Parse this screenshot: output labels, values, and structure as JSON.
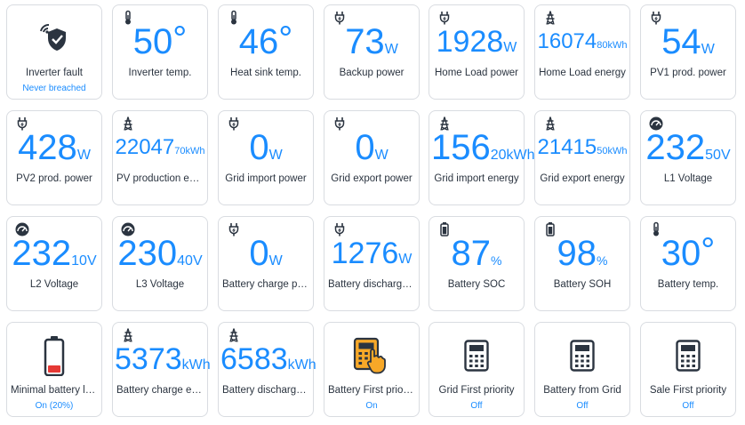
{
  "colors": {
    "accent": "#1a8cff",
    "label": "#2b3440",
    "border": "#d9dce1",
    "fault_green": "#2aa889",
    "battery_red": "#e53935",
    "calc_orange": "#f7a828"
  },
  "tiles": [
    {
      "id": "inverter-fault",
      "icon": "wifi-shield-icon",
      "label": "Inverter fault",
      "sub": "Never breached"
    },
    {
      "id": "inverter-temp",
      "icon": "thermometer-icon",
      "value": "50",
      "unit": "°",
      "label": "Inverter temp."
    },
    {
      "id": "heat-sink-temp",
      "icon": "thermometer-icon",
      "value": "46",
      "unit": "°",
      "label": "Heat sink temp."
    },
    {
      "id": "backup-power",
      "icon": "plug-icon",
      "value": "73",
      "unit": "W",
      "label": "Backup power"
    },
    {
      "id": "home-load-power",
      "icon": "plug-icon",
      "value": "1928",
      "unit": "W",
      "label": "Home Load power"
    },
    {
      "id": "home-load-energy",
      "icon": "tower-icon",
      "value": "16074",
      "unit": "80kWh",
      "label": "Home Load energy"
    },
    {
      "id": "pv1-prod-power",
      "icon": "plug-icon",
      "value": "54",
      "unit": "W",
      "label": "PV1 prod. power"
    },
    {
      "id": "pv2-prod-power",
      "icon": "plug-icon",
      "value": "428",
      "unit": "W",
      "label": "PV2 prod. power"
    },
    {
      "id": "pv-production-energy",
      "icon": "tower-icon",
      "value": "22047",
      "unit": "70kWh",
      "label": "PV production energy"
    },
    {
      "id": "grid-import-power",
      "icon": "plug-icon",
      "value": "0",
      "unit": "W",
      "label": "Grid import power"
    },
    {
      "id": "grid-export-power",
      "icon": "plug-icon",
      "value": "0",
      "unit": "W",
      "label": "Grid export power"
    },
    {
      "id": "grid-import-energy",
      "icon": "tower-icon",
      "value": "156",
      "unit": "20kWh",
      "label": "Grid import energy"
    },
    {
      "id": "grid-export-energy",
      "icon": "tower-icon",
      "value": "21415",
      "unit": "50kWh",
      "label": "Grid export energy"
    },
    {
      "id": "l1-voltage",
      "icon": "gauge-icon",
      "value": "232",
      "unit": "50V",
      "label": "L1 Voltage"
    },
    {
      "id": "l2-voltage",
      "icon": "gauge-icon",
      "value": "232",
      "unit": "10V",
      "label": "L2 Voltage"
    },
    {
      "id": "l3-voltage",
      "icon": "gauge-icon",
      "value": "230",
      "unit": "40V",
      "label": "L3 Voltage"
    },
    {
      "id": "battery-charge-power",
      "icon": "plug-icon",
      "value": "0",
      "unit": "W",
      "label": "Battery charge power"
    },
    {
      "id": "battery-discharge-power",
      "icon": "plug-icon",
      "value": "1276",
      "unit": "W",
      "label": "Battery discharge power"
    },
    {
      "id": "battery-soc",
      "icon": "battery-small-icon",
      "value": "87",
      "unit": "%",
      "label": "Battery SOC"
    },
    {
      "id": "battery-soh",
      "icon": "battery-small-icon",
      "value": "98",
      "unit": "%",
      "label": "Battery SOH"
    },
    {
      "id": "battery-temp",
      "icon": "thermometer-icon",
      "value": "30",
      "unit": "°",
      "label": "Battery temp."
    },
    {
      "id": "minimal-battery",
      "icon": "battery-low-icon",
      "label": "Minimal battery level",
      "sub": "On (20%)"
    },
    {
      "id": "battery-charge-energy",
      "icon": "tower-icon",
      "value": "5373",
      "unit": "kWh",
      "label": "Battery charge energy"
    },
    {
      "id": "battery-discharge-energy",
      "icon": "tower-icon",
      "value": "6583",
      "unit": "kWh",
      "label": "Battery discharge energy"
    },
    {
      "id": "battery-first-priority",
      "icon": "calculator-hand-icon",
      "label": "Battery First priority",
      "sub": "On"
    },
    {
      "id": "grid-first-priority",
      "icon": "calculator-icon",
      "label": "Grid First priority",
      "sub": "Off"
    },
    {
      "id": "battery-from-grid",
      "icon": "calculator-icon",
      "label": "Battery from Grid",
      "sub": "Off"
    },
    {
      "id": "sale-first-priority",
      "icon": "calculator-icon",
      "label": "Sale First priority",
      "sub": "Off"
    }
  ]
}
